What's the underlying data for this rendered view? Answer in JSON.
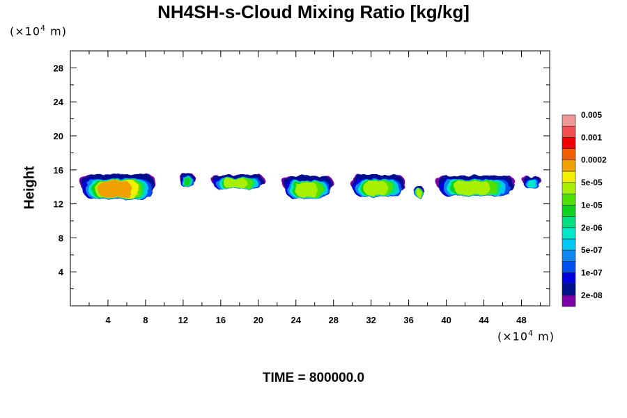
{
  "chart_data": {
    "type": "heatmap",
    "title": "NH4SH-s-Cloud Mixing Ratio [kg/kg]",
    "ylabel": "Height",
    "x_unit": "(×10",
    "y_unit": "(×10",
    "unit_exponent": "4",
    "unit_suffix": " m)",
    "xlim": [
      0,
      51
    ],
    "ylim": [
      0,
      30
    ],
    "x_ticks": [
      4,
      8,
      12,
      16,
      20,
      24,
      28,
      32,
      36,
      40,
      44,
      48
    ],
    "y_ticks": [
      4,
      8,
      12,
      16,
      20,
      24,
      28
    ],
    "colorbar": {
      "colors": [
        "#7B00A8",
        "#00108C",
        "#0000D8",
        "#0050F0",
        "#1088F0",
        "#00C8F0",
        "#00E8C8",
        "#00E080",
        "#10D020",
        "#50E000",
        "#A8F000",
        "#F0F000",
        "#F0A000",
        "#F06000",
        "#F00000",
        "#F05050",
        "#F09898"
      ],
      "labels": [
        "2e-08",
        "1e-07",
        "5e-07",
        "2e-06",
        "1e-05",
        "5e-05",
        "0.0002",
        "0.001",
        "0.005"
      ]
    },
    "cloud_layer": {
      "base": 12.5,
      "top": 16.3,
      "peak_value": "0.0002"
    },
    "clouds": [
      {
        "x0": 1.0,
        "x1": 9.1,
        "base": 12.5,
        "top": 15.5,
        "core": "0.0002"
      },
      {
        "x0": 11.6,
        "x1": 13.3,
        "base": 13.9,
        "top": 15.5,
        "core": "1e-05"
      },
      {
        "x0": 15.0,
        "x1": 20.6,
        "base": 13.7,
        "top": 15.4,
        "core": "5e-05"
      },
      {
        "x0": 22.6,
        "x1": 28.0,
        "base": 12.6,
        "top": 15.3,
        "core": "5e-05"
      },
      {
        "x0": 29.8,
        "x1": 35.6,
        "base": 12.8,
        "top": 15.4,
        "core": "5e-05"
      },
      {
        "x0": 36.6,
        "x1": 37.6,
        "base": 12.7,
        "top": 14.1,
        "core": "5e-05"
      },
      {
        "x0": 38.9,
        "x1": 47.3,
        "base": 12.9,
        "top": 15.3,
        "core": "5e-05"
      },
      {
        "x0": 48.1,
        "x1": 50.1,
        "base": 13.8,
        "top": 15.2,
        "core": "2e-06"
      }
    ]
  },
  "time_label": "TIME = 800000.0"
}
